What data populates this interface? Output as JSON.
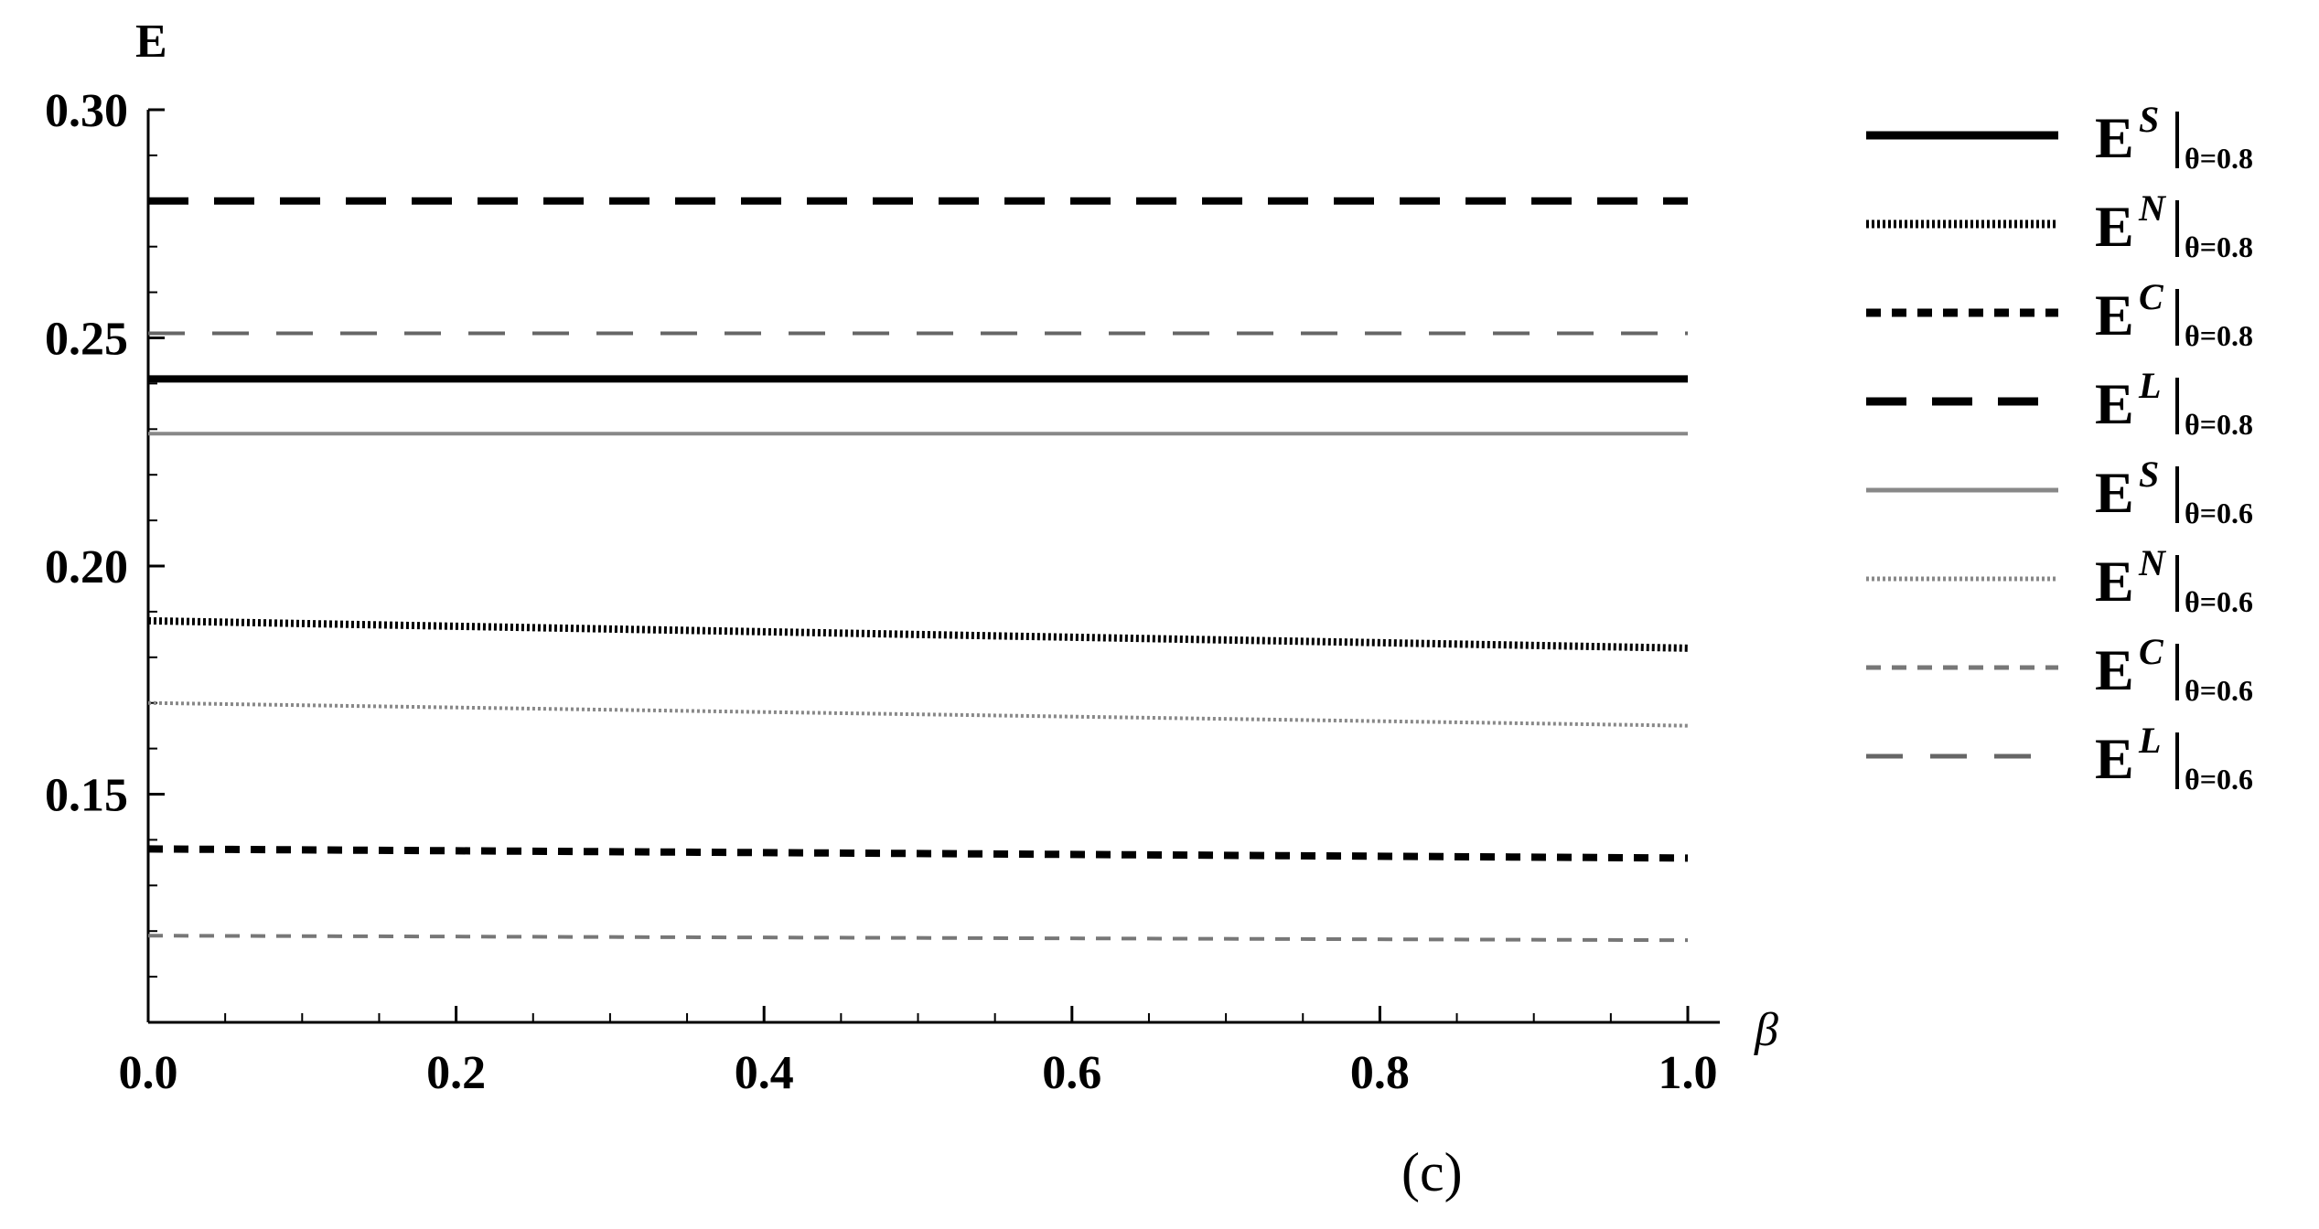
{
  "chart_data": {
    "type": "line",
    "title": "",
    "xlabel": "β",
    "ylabel": "E",
    "xlim": [
      0.0,
      1.0
    ],
    "ylim": [
      0.1,
      0.3
    ],
    "x_ticks": [
      "0.0",
      "0.2",
      "0.4",
      "0.6",
      "0.8",
      "1.0"
    ],
    "y_ticks": [
      "0.15",
      "0.20",
      "0.25",
      "0.30"
    ],
    "x": [
      0.0,
      1.0
    ],
    "grid": false,
    "legend_position": "right",
    "series": [
      {
        "name_main": "E",
        "name_sup": "S",
        "name_sub": "θ=0.8",
        "values": [
          0.241,
          0.241
        ],
        "color": "#000000",
        "dash": "solid",
        "stroke": "thick"
      },
      {
        "name_main": "E",
        "name_sup": "N",
        "name_sub": "θ=0.8",
        "values": [
          0.188,
          0.182
        ],
        "color": "#000000",
        "dash": "dotted",
        "stroke": "thick"
      },
      {
        "name_main": "E",
        "name_sup": "C",
        "name_sub": "θ=0.8",
        "values": [
          0.138,
          0.136
        ],
        "color": "#000000",
        "dash": "short-dash",
        "stroke": "thick"
      },
      {
        "name_main": "E",
        "name_sup": "L",
        "name_sub": "θ=0.8",
        "values": [
          0.28,
          0.28
        ],
        "color": "#000000",
        "dash": "long-dash",
        "stroke": "thick"
      },
      {
        "name_main": "E",
        "name_sup": "S",
        "name_sub": "θ=0.6",
        "values": [
          0.229,
          0.229
        ],
        "color": "#888888",
        "dash": "solid",
        "stroke": "thin"
      },
      {
        "name_main": "E",
        "name_sup": "N",
        "name_sub": "θ=0.6",
        "values": [
          0.17,
          0.165
        ],
        "color": "#888888",
        "dash": "dotted",
        "stroke": "thin"
      },
      {
        "name_main": "E",
        "name_sup": "C",
        "name_sub": "θ=0.6",
        "values": [
          0.119,
          0.118
        ],
        "color": "#777777",
        "dash": "short-dash",
        "stroke": "thin"
      },
      {
        "name_main": "E",
        "name_sup": "L",
        "name_sub": "θ=0.6",
        "values": [
          0.251,
          0.251
        ],
        "color": "#666666",
        "dash": "long-dash",
        "stroke": "thin"
      }
    ],
    "annotations": [
      "(c)"
    ]
  }
}
